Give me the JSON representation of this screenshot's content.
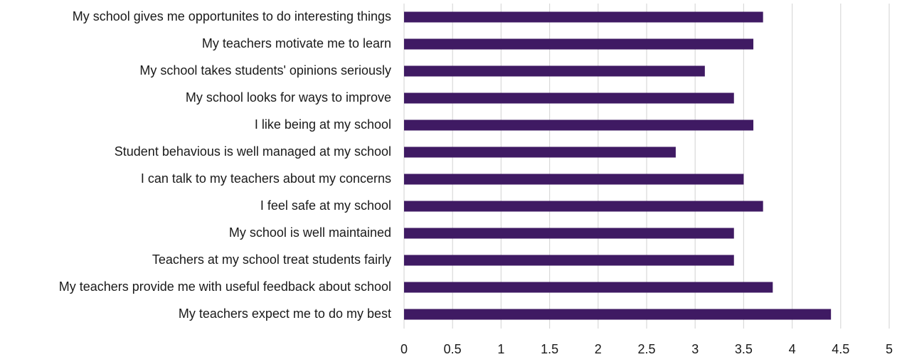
{
  "chart_data": {
    "type": "bar",
    "orientation": "horizontal",
    "categories": [
      "My school gives me opportunites to do interesting things",
      "My teachers motivate me to learn",
      "My school takes students' opinions seriously",
      "My school looks for ways to improve",
      "I like being at my school",
      "Student behavious is well managed at my school",
      "I can talk to my teachers about my concerns",
      "I feel safe at my school",
      "My school is well maintained",
      "Teachers at my school treat students fairly",
      "My teachers provide me with useful feedback about school",
      "My teachers expect me to do my best"
    ],
    "values": [
      3.7,
      3.6,
      3.1,
      3.4,
      3.6,
      2.8,
      3.5,
      3.7,
      3.4,
      3.4,
      3.8,
      4.4
    ],
    "xlim": [
      0,
      5
    ],
    "x_ticks": [
      0,
      0.5,
      1,
      1.5,
      2,
      2.5,
      3,
      3.5,
      4,
      4.5,
      5
    ],
    "x_tick_labels": [
      "0",
      "0.5",
      "1",
      "1.5",
      "2",
      "2.5",
      "3",
      "3.5",
      "4",
      "4.5",
      "5"
    ],
    "title": "",
    "xlabel": "",
    "ylabel": "",
    "grid": "vertical",
    "bar_color": "#3f1a63"
  }
}
